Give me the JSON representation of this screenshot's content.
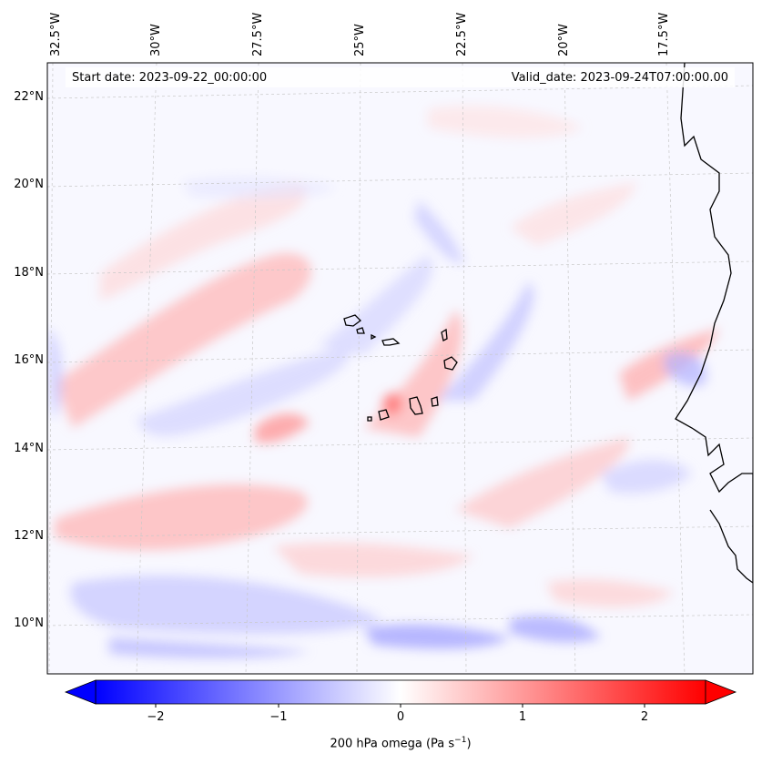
{
  "annotations": {
    "start_date": "Start date: 2023-09-22_00:00:00",
    "valid_date": "Valid_date: 2023-09-24T07:00:00.00"
  },
  "lon_labels": [
    "32.5°W",
    "30°W",
    "27.5°W",
    "25°W",
    "22.5°W",
    "20°W",
    "17.5°W"
  ],
  "lat_labels": [
    "22°N",
    "20°N",
    "18°N",
    "16°N",
    "14°N",
    "12°N",
    "10°N"
  ],
  "colorbar": {
    "label": "200 hPa omega (Pa s",
    "label_exponent": "−1",
    "label_close": ")",
    "ticks": [
      "−2",
      "−1",
      "0",
      "1",
      "2"
    ],
    "range": [
      -2.7,
      2.7
    ],
    "colors": {
      "min": "#0000ff",
      "mid": "#ffffff",
      "max": "#ff0000"
    },
    "extend": "both"
  },
  "map": {
    "field": "200 hPa omega",
    "units": "Pa s-1",
    "lon_range": [
      -33,
      -15.5
    ],
    "lat_range": [
      9,
      22.8
    ],
    "gridlines": true,
    "coastline_color": "#000000"
  }
}
